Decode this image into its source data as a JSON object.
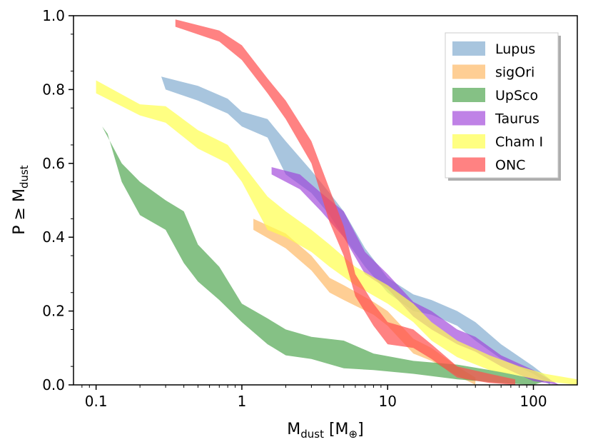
{
  "chart_data": {
    "type": "area",
    "title": "",
    "xscale": "log",
    "xlim": [
      0.07,
      200
    ],
    "ylim": [
      0,
      1
    ],
    "xlabel": {
      "main": "M",
      "sub": "dust",
      "unit_text": " [M",
      "unit_sub": "⊕",
      "unit_close": "]"
    },
    "ylabel": {
      "main": "P ≥ M",
      "sub": "dust"
    },
    "xticks": [
      {
        "value": 0.1,
        "label": "0.1"
      },
      {
        "value": 1,
        "label": "1"
      },
      {
        "value": 10,
        "label": "10"
      },
      {
        "value": 100,
        "label": "100"
      }
    ],
    "yticks": [
      {
        "value": 0.0,
        "label": "0.0"
      },
      {
        "value": 0.2,
        "label": "0.2"
      },
      {
        "value": 0.4,
        "label": "0.4"
      },
      {
        "value": 0.6,
        "label": "0.6"
      },
      {
        "value": 0.8,
        "label": "0.8"
      },
      {
        "value": 1.0,
        "label": "1.0"
      }
    ],
    "legend_position": "top-right",
    "series": [
      {
        "name": "Lupus",
        "color": "#7aa6cc",
        "opacity": 0.65,
        "upper": [
          [
            0.28,
            0.835
          ],
          [
            0.5,
            0.81
          ],
          [
            0.8,
            0.775
          ],
          [
            1.0,
            0.74
          ],
          [
            1.5,
            0.72
          ],
          [
            2.0,
            0.66
          ],
          [
            3.0,
            0.58
          ],
          [
            4.0,
            0.52
          ],
          [
            5.0,
            0.47
          ],
          [
            7.0,
            0.37
          ],
          [
            10.0,
            0.29
          ],
          [
            15.0,
            0.245
          ],
          [
            20.0,
            0.23
          ],
          [
            30.0,
            0.2
          ],
          [
            40.0,
            0.17
          ],
          [
            60.0,
            0.11
          ],
          [
            100.0,
            0.05
          ],
          [
            130.0,
            0.015
          ]
        ],
        "lower": [
          [
            0.3,
            0.8
          ],
          [
            0.5,
            0.77
          ],
          [
            0.8,
            0.735
          ],
          [
            1.0,
            0.7
          ],
          [
            1.5,
            0.67
          ],
          [
            2.0,
            0.57
          ],
          [
            3.0,
            0.52
          ],
          [
            4.0,
            0.46
          ],
          [
            5.0,
            0.4
          ],
          [
            7.0,
            0.32
          ],
          [
            10.0,
            0.25
          ],
          [
            15.0,
            0.2
          ],
          [
            20.0,
            0.19
          ],
          [
            30.0,
            0.16
          ],
          [
            40.0,
            0.12
          ],
          [
            60.0,
            0.07
          ],
          [
            100.0,
            0.03
          ],
          [
            130.0,
            0.0
          ]
        ]
      },
      {
        "name": "sigOri",
        "color": "#fdb35b",
        "opacity": 0.65,
        "upper": [
          [
            1.2,
            0.45
          ],
          [
            2.0,
            0.41
          ],
          [
            3.0,
            0.35
          ],
          [
            4.0,
            0.29
          ],
          [
            5.0,
            0.27
          ],
          [
            8.0,
            0.225
          ],
          [
            10.0,
            0.2
          ],
          [
            15.0,
            0.125
          ],
          [
            20.0,
            0.1
          ],
          [
            30.0,
            0.05
          ],
          [
            40.0,
            0.02
          ]
        ],
        "lower": [
          [
            1.2,
            0.42
          ],
          [
            2.0,
            0.37
          ],
          [
            3.0,
            0.31
          ],
          [
            4.0,
            0.25
          ],
          [
            5.0,
            0.23
          ],
          [
            8.0,
            0.19
          ],
          [
            10.0,
            0.16
          ],
          [
            15.0,
            0.085
          ],
          [
            20.0,
            0.065
          ],
          [
            30.0,
            0.025
          ],
          [
            40.0,
            0.0
          ]
        ]
      },
      {
        "name": "UpSco",
        "color": "#43a043",
        "opacity": 0.65,
        "upper": [
          [
            0.11,
            0.7
          ],
          [
            0.15,
            0.6
          ],
          [
            0.2,
            0.55
          ],
          [
            0.3,
            0.5
          ],
          [
            0.4,
            0.47
          ],
          [
            0.5,
            0.38
          ],
          [
            0.7,
            0.32
          ],
          [
            1.0,
            0.22
          ],
          [
            1.5,
            0.18
          ],
          [
            2.0,
            0.15
          ],
          [
            3.0,
            0.13
          ],
          [
            5.0,
            0.12
          ],
          [
            8.0,
            0.085
          ],
          [
            15.0,
            0.065
          ],
          [
            30.0,
            0.055
          ],
          [
            60.0,
            0.035
          ],
          [
            120.0,
            0.01
          ]
        ],
        "lower": [
          [
            0.12,
            0.68
          ],
          [
            0.15,
            0.55
          ],
          [
            0.2,
            0.46
          ],
          [
            0.3,
            0.42
          ],
          [
            0.4,
            0.33
          ],
          [
            0.5,
            0.28
          ],
          [
            0.7,
            0.23
          ],
          [
            1.0,
            0.17
          ],
          [
            1.5,
            0.11
          ],
          [
            2.0,
            0.08
          ],
          [
            3.0,
            0.07
          ],
          [
            5.0,
            0.045
          ],
          [
            8.0,
            0.04
          ],
          [
            15.0,
            0.03
          ],
          [
            30.0,
            0.015
          ],
          [
            60.0,
            0.005
          ],
          [
            100.0,
            0.0
          ]
        ]
      },
      {
        "name": "Taurus",
        "color": "#9d3fd9",
        "opacity": 0.65,
        "upper": [
          [
            1.6,
            0.59
          ],
          [
            2.5,
            0.57
          ],
          [
            3.5,
            0.52
          ],
          [
            5.0,
            0.47
          ],
          [
            7.0,
            0.36
          ],
          [
            10.0,
            0.3
          ],
          [
            15.0,
            0.225
          ],
          [
            20.0,
            0.2
          ],
          [
            30.0,
            0.15
          ],
          [
            40.0,
            0.13
          ],
          [
            60.0,
            0.08
          ],
          [
            100.0,
            0.04
          ],
          [
            150.0,
            0.0
          ]
        ],
        "lower": [
          [
            1.6,
            0.57
          ],
          [
            2.5,
            0.53
          ],
          [
            3.5,
            0.47
          ],
          [
            5.0,
            0.4
          ],
          [
            7.0,
            0.3
          ],
          [
            10.0,
            0.26
          ],
          [
            15.0,
            0.185
          ],
          [
            20.0,
            0.15
          ],
          [
            30.0,
            0.11
          ],
          [
            40.0,
            0.09
          ],
          [
            60.0,
            0.05
          ],
          [
            100.0,
            0.01
          ],
          [
            150.0,
            0.0
          ]
        ]
      },
      {
        "name": "Cham I",
        "color": "#ffff4d",
        "opacity": 0.7,
        "upper": [
          [
            0.1,
            0.825
          ],
          [
            0.2,
            0.76
          ],
          [
            0.3,
            0.755
          ],
          [
            0.5,
            0.69
          ],
          [
            0.8,
            0.65
          ],
          [
            1.0,
            0.6
          ],
          [
            1.5,
            0.51
          ],
          [
            2.0,
            0.47
          ],
          [
            3.0,
            0.42
          ],
          [
            4.0,
            0.38
          ],
          [
            6.0,
            0.32
          ],
          [
            10.0,
            0.27
          ],
          [
            15.0,
            0.22
          ],
          [
            20.0,
            0.17
          ],
          [
            30.0,
            0.12
          ],
          [
            50.0,
            0.08
          ],
          [
            80.0,
            0.05
          ],
          [
            120.0,
            0.03
          ],
          [
            200.0,
            0.015
          ]
        ],
        "lower": [
          [
            0.1,
            0.79
          ],
          [
            0.2,
            0.73
          ],
          [
            0.3,
            0.71
          ],
          [
            0.5,
            0.64
          ],
          [
            0.8,
            0.6
          ],
          [
            1.0,
            0.55
          ],
          [
            1.5,
            0.42
          ],
          [
            2.0,
            0.4
          ],
          [
            3.0,
            0.36
          ],
          [
            4.0,
            0.32
          ],
          [
            6.0,
            0.27
          ],
          [
            10.0,
            0.22
          ],
          [
            15.0,
            0.17
          ],
          [
            20.0,
            0.12
          ],
          [
            30.0,
            0.075
          ],
          [
            50.0,
            0.04
          ],
          [
            80.0,
            0.025
          ],
          [
            120.0,
            0.01
          ],
          [
            200.0,
            0.0
          ]
        ]
      },
      {
        "name": "ONC",
        "color": "#ff4d4d",
        "opacity": 0.7,
        "upper": [
          [
            0.35,
            0.99
          ],
          [
            0.7,
            0.96
          ],
          [
            1.0,
            0.92
          ],
          [
            1.5,
            0.83
          ],
          [
            2.0,
            0.77
          ],
          [
            3.0,
            0.66
          ],
          [
            4.0,
            0.53
          ],
          [
            5.0,
            0.43
          ],
          [
            6.0,
            0.3
          ],
          [
            8.0,
            0.22
          ],
          [
            10.0,
            0.17
          ],
          [
            15.0,
            0.15
          ],
          [
            20.0,
            0.11
          ],
          [
            30.0,
            0.05
          ],
          [
            50.0,
            0.03
          ],
          [
            75.0,
            0.015
          ]
        ],
        "lower": [
          [
            0.35,
            0.97
          ],
          [
            0.7,
            0.93
          ],
          [
            1.0,
            0.88
          ],
          [
            1.5,
            0.79
          ],
          [
            2.0,
            0.72
          ],
          [
            3.0,
            0.6
          ],
          [
            4.0,
            0.44
          ],
          [
            5.0,
            0.35
          ],
          [
            6.0,
            0.24
          ],
          [
            8.0,
            0.16
          ],
          [
            10.0,
            0.11
          ],
          [
            15.0,
            0.1
          ],
          [
            20.0,
            0.07
          ],
          [
            30.0,
            0.02
          ],
          [
            50.0,
            0.005
          ],
          [
            75.0,
            0.0
          ]
        ]
      }
    ]
  }
}
